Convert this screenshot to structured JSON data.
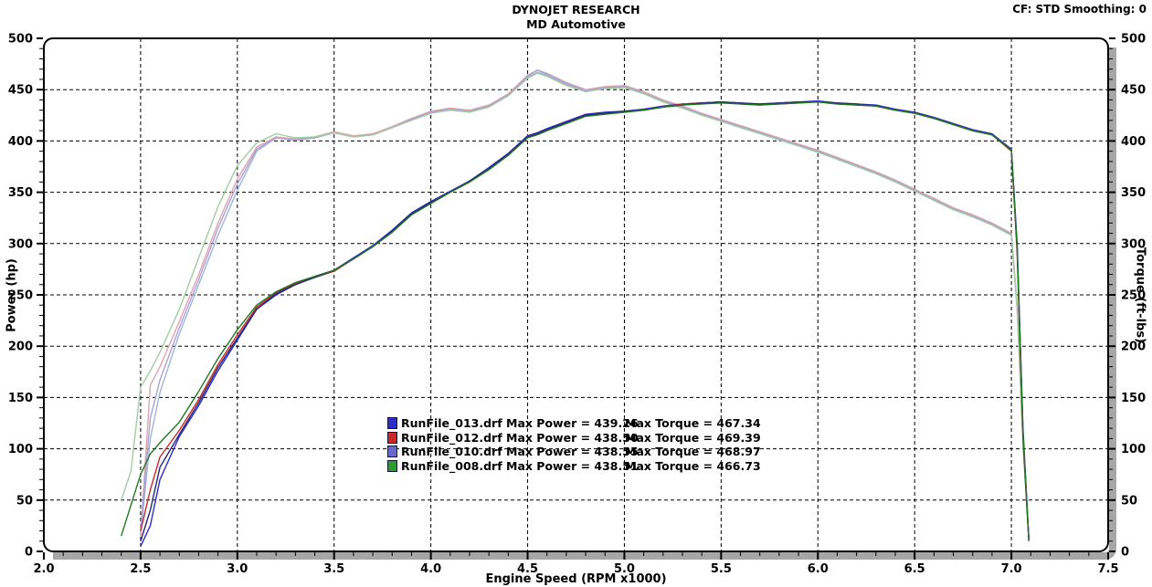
{
  "header": {
    "title": "DYNOJET RESEARCH",
    "subtitle": "MD Automotive",
    "correction": "CF: STD  Smoothing: 0"
  },
  "axes": {
    "x_label": "Engine Speed (RPM x1000)",
    "y_left_label": "Power (hp)",
    "y_right_label": "Torque (ft-lbs)"
  },
  "legend": {
    "items": [
      {
        "color": "#2c2cc8",
        "power_label": "RunFile_013.drf Max Power = 439.26",
        "torque_label": "Max Torque = 467.34"
      },
      {
        "color": "#c82828",
        "power_label": "RunFile_012.drf Max Power = 438.50",
        "torque_label": "Max Torque = 469.39"
      },
      {
        "color": "#6868d0",
        "power_label": "RunFile_010.drf Max Power = 438.55",
        "torque_label": "Max Torque = 468.97"
      },
      {
        "color": "#28a028",
        "power_label": "RunFile_008.drf Max Power = 438.51",
        "torque_label": "Max Torque = 466.73"
      }
    ]
  },
  "chart_data": {
    "type": "line",
    "title": "DYNOJET RESEARCH - MD Automotive",
    "xlabel": "Engine Speed (RPM x1000)",
    "ylabel_left": "Power (hp)",
    "ylabel_right": "Torque (ft-lbs)",
    "xlim": [
      2.0,
      7.5
    ],
    "ylim": [
      0,
      500
    ],
    "x_major_tick_step": 0.5,
    "x_minor_tick_step": 0.1,
    "y_major_tick_step": 50,
    "y_minor_tick_step": 10,
    "grid": "dashed-black",
    "legend_position": "inside-center-bottom",
    "x": [
      2.4,
      2.45,
      2.5,
      2.55,
      2.6,
      2.7,
      2.8,
      2.9,
      3.0,
      3.1,
      3.2,
      3.3,
      3.4,
      3.5,
      3.6,
      3.7,
      3.8,
      3.9,
      4.0,
      4.1,
      4.2,
      4.3,
      4.4,
      4.5,
      4.55,
      4.6,
      4.7,
      4.8,
      4.9,
      5.0,
      5.1,
      5.2,
      5.3,
      5.4,
      5.5,
      5.6,
      5.7,
      5.8,
      5.9,
      6.0,
      6.1,
      6.2,
      6.3,
      6.4,
      6.5,
      6.6,
      6.7,
      6.8,
      6.9,
      7.0,
      7.03,
      7.06,
      7.09
    ],
    "series": [
      {
        "name": "RunFile_013.drf",
        "max_power": 439.26,
        "max_torque": 467.34,
        "power_color": "#2c2cc8",
        "torque_color": "#9fb4d8",
        "power": [
          null,
          null,
          5,
          25,
          70,
          112,
          142,
          176,
          206,
          236,
          250,
          260,
          268,
          274,
          286,
          298,
          313,
          330,
          341,
          351,
          361,
          374,
          388,
          405,
          408,
          412,
          419,
          426,
          428,
          429,
          431,
          434,
          436,
          437,
          438,
          437,
          436,
          437,
          438,
          439,
          437,
          436,
          435,
          431,
          428,
          423,
          417,
          411,
          407,
          392,
          300,
          120,
          12
        ],
        "torque": [
          null,
          null,
          15,
          110,
          155,
          212,
          260,
          308,
          352,
          390,
          403,
          401,
          403,
          408,
          404,
          406,
          413,
          421,
          428,
          431,
          429,
          434,
          444,
          462,
          467,
          464,
          455,
          449,
          452,
          453,
          447,
          439,
          433,
          426,
          420,
          414,
          408,
          402,
          396,
          390,
          383,
          376,
          369,
          361,
          352,
          343,
          334,
          327,
          319,
          309,
          240,
          110,
          12
        ]
      },
      {
        "name": "RunFile_012.drf",
        "max_power": 438.5,
        "max_torque": 469.39,
        "power_color": "#c82828",
        "torque_color": "#e0a4ac",
        "power": [
          null,
          null,
          20,
          60,
          92,
          118,
          148,
          182,
          211,
          238,
          252,
          261,
          267,
          273,
          285,
          297,
          311,
          329,
          340,
          350,
          360,
          373,
          387,
          404,
          407,
          411,
          418,
          425,
          427,
          428,
          430,
          433,
          436,
          437,
          438,
          436,
          435,
          436,
          437,
          438,
          436,
          435,
          434,
          430,
          427,
          422,
          416,
          410,
          406,
          390,
          290,
          110,
          10
        ],
        "torque": [
          null,
          null,
          15,
          162,
          180,
          224,
          270,
          320,
          363,
          394,
          404,
          402,
          404,
          409,
          405,
          407,
          414,
          422,
          429,
          432,
          430,
          435,
          446,
          464,
          469,
          466,
          457,
          450,
          453,
          454,
          448,
          440,
          434,
          427,
          421,
          415,
          409,
          403,
          397,
          391,
          384,
          377,
          370,
          362,
          353,
          344,
          335,
          328,
          320,
          310,
          235,
          105,
          10
        ]
      },
      {
        "name": "RunFile_010.drf",
        "max_power": 438.55,
        "max_torque": 468.97,
        "power_color": "#26267e",
        "torque_color": "#a8a2da",
        "power": [
          null,
          null,
          10,
          40,
          82,
          114,
          145,
          179,
          208,
          236,
          251,
          260,
          267,
          274,
          285,
          297,
          312,
          329,
          340,
          350,
          361,
          373,
          387,
          404,
          407,
          411,
          418,
          425,
          427,
          429,
          430,
          433,
          435,
          437,
          438,
          437,
          436,
          437,
          438,
          438,
          437,
          436,
          434,
          430,
          427,
          422,
          416,
          410,
          406,
          391,
          295,
          115,
          11
        ],
        "torque": [
          null,
          null,
          20,
          130,
          167,
          218,
          265,
          315,
          358,
          392,
          403,
          401,
          403,
          408,
          404,
          406,
          413,
          421,
          428,
          431,
          429,
          434,
          445,
          463,
          469,
          465,
          456,
          449,
          452,
          453,
          447,
          439,
          433,
          426,
          420,
          414,
          408,
          402,
          396,
          390,
          383,
          376,
          369,
          361,
          352,
          343,
          334,
          327,
          319,
          309,
          238,
          108,
          11
        ]
      },
      {
        "name": "RunFile_008.drf",
        "max_power": 438.51,
        "max_torque": 466.73,
        "power_color": "#1e7a1e",
        "torque_color": "#a2cc9e",
        "power": [
          15,
          45,
          75,
          95,
          106,
          126,
          156,
          188,
          216,
          240,
          253,
          262,
          268,
          274,
          285,
          297,
          311,
          328,
          339,
          350,
          360,
          372,
          386,
          403,
          406,
          410,
          417,
          424,
          426,
          428,
          430,
          433,
          435,
          436,
          437,
          436,
          435,
          436,
          437,
          438,
          436,
          435,
          434,
          430,
          427,
          422,
          416,
          410,
          406,
          391,
          295,
          115,
          11
        ],
        "torque": [
          50,
          78,
          160,
          176,
          194,
          236,
          286,
          336,
          376,
          398,
          407,
          403,
          404,
          408,
          404,
          406,
          413,
          420,
          427,
          430,
          428,
          433,
          444,
          461,
          466,
          463,
          454,
          448,
          451,
          452,
          446,
          438,
          432,
          425,
          419,
          413,
          407,
          401,
          395,
          389,
          382,
          375,
          368,
          360,
          351,
          342,
          333,
          326,
          318,
          308,
          236,
          106,
          10
        ]
      }
    ]
  }
}
